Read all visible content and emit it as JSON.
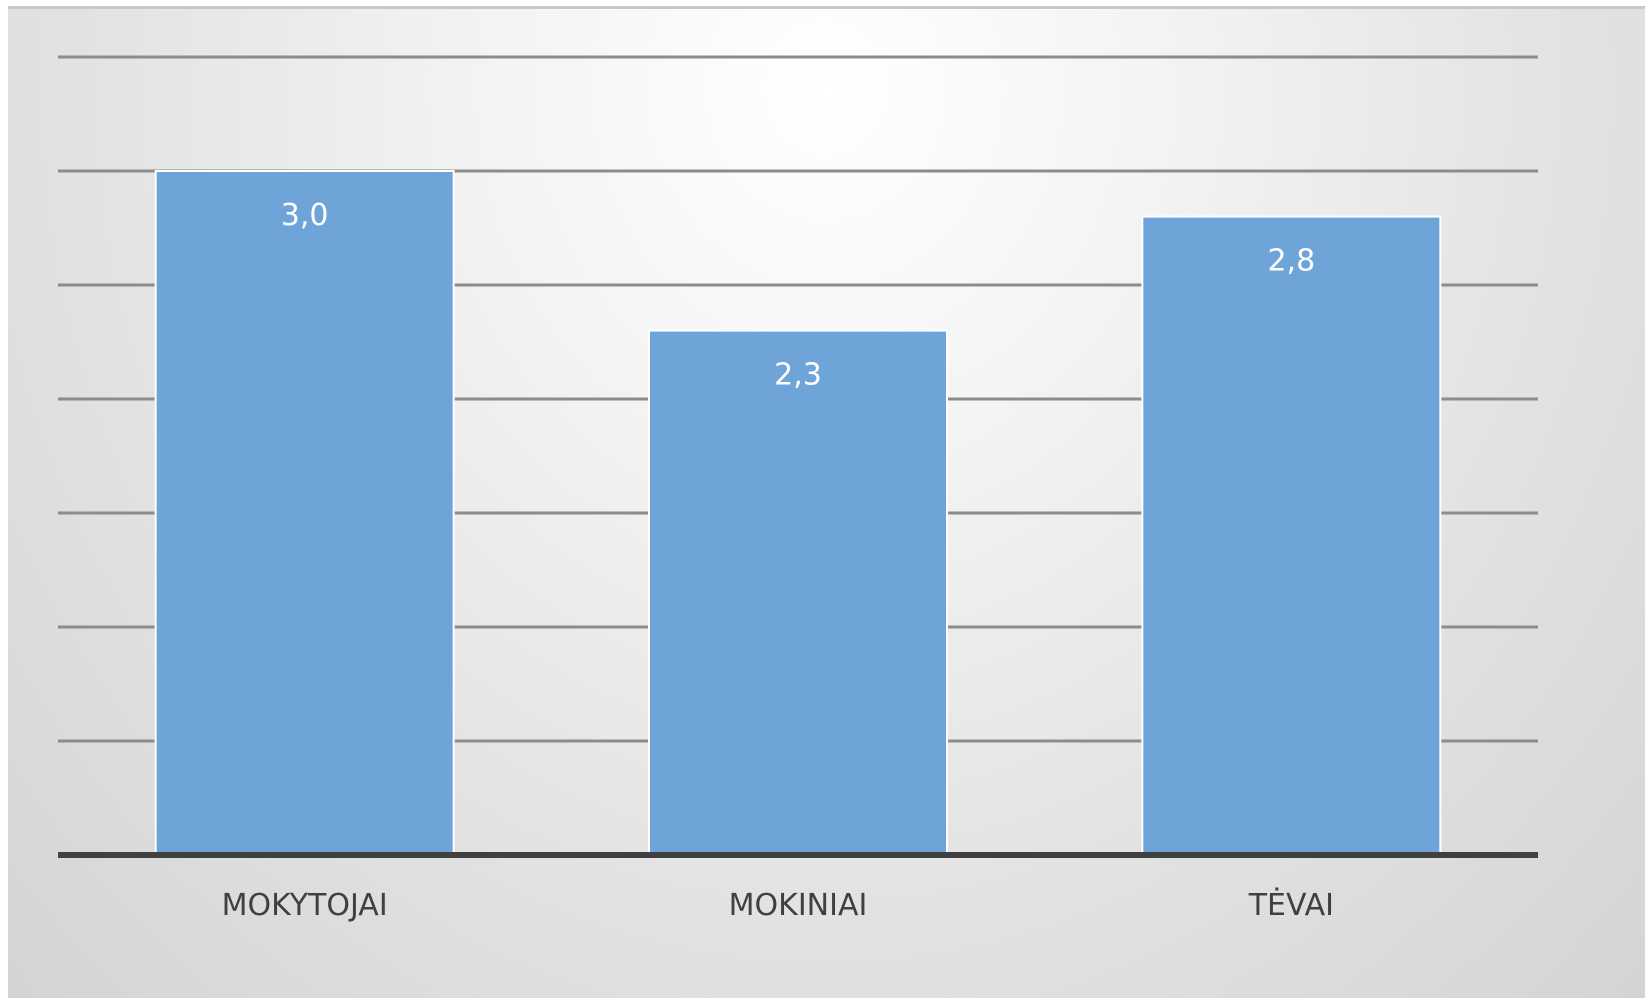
{
  "chart_data": {
    "type": "bar",
    "categories": [
      "MOKYTOJAI",
      "MOKINIAI",
      "TĖVAI"
    ],
    "values": [
      3.0,
      2.3,
      2.8
    ],
    "data_labels": [
      "3,0",
      "2,3",
      "2,8"
    ],
    "title": "",
    "xlabel": "",
    "ylabel": "",
    "ylim": [
      0,
      3.5
    ],
    "ytick_step": 0.5,
    "y_tick_labels_visible": false,
    "grid": true,
    "legend": "none",
    "colors": {
      "bar": "#6fa4d9",
      "bar_stroke": "#ffffff",
      "gridline": "#8c8c8c",
      "baseline": "#404040",
      "category_text": "#404040",
      "data_label_text": "#ffffff"
    }
  }
}
